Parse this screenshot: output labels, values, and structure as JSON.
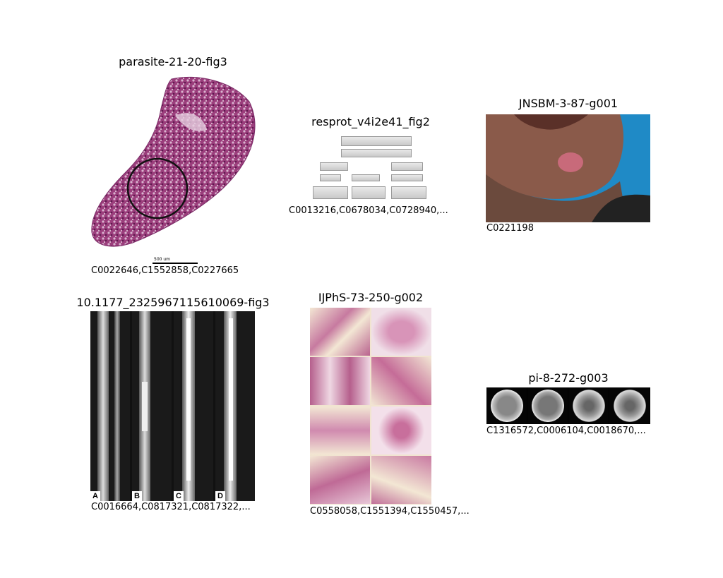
{
  "figures": [
    {
      "title": "parasite-21-20-fig3",
      "codes": "C0022646,C1552858,C0227665",
      "scale_bar": "500 um"
    },
    {
      "title": "resprot_v4i2e41_fig2",
      "codes": "C0013216,C0678034,C0728940,..."
    },
    {
      "title": "JNSBM-3-87-g001",
      "codes": "C0221198"
    },
    {
      "title": "10.1177_2325967115610069-fig3",
      "codes": "C0016664,C0817321,C0817322,...",
      "panel_labels": [
        "A",
        "B",
        "C",
        "D"
      ]
    },
    {
      "title": "IJPhS-73-250-g002",
      "codes": "C0558058,C1551394,C1550457,..."
    },
    {
      "title": "pi-8-272-g003",
      "codes": "C1316572,C0006104,C0018670,..."
    }
  ]
}
